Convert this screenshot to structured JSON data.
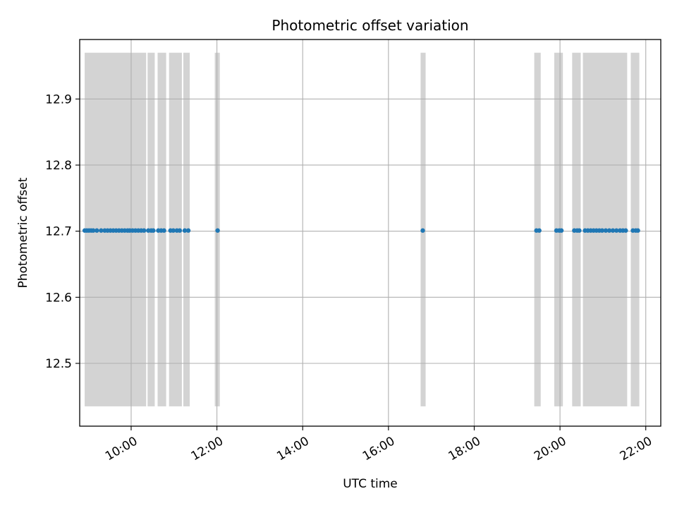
{
  "chart_data": {
    "type": "scatter",
    "title": "Photometric offset variation",
    "xlabel": "UTC time",
    "ylabel": "Photometric offset",
    "x_unit": "UTC time (HH:MM)",
    "xlim": [
      "08:48",
      "22:21"
    ],
    "ylim": [
      12.405,
      12.99
    ],
    "x_ticks": [
      "10:00",
      "12:00",
      "14:00",
      "16:00",
      "18:00",
      "20:00",
      "22:00"
    ],
    "y_ticks": [
      12.5,
      12.6,
      12.7,
      12.8,
      12.9
    ],
    "y_tick_labels": [
      "12.5",
      "12.6",
      "12.7",
      "12.8",
      "12.9"
    ],
    "grid": true,
    "legend": "none",
    "colors": {
      "points": "#1f77b4",
      "spans": "#d3d3d3",
      "grid": "#b0b0b0"
    },
    "span_range": [
      12.435,
      12.97
    ],
    "spans": [
      {
        "start": "08:55",
        "end": "10:21"
      },
      {
        "start": "10:23",
        "end": "10:33"
      },
      {
        "start": "10:37",
        "end": "10:49"
      },
      {
        "start": "10:53",
        "end": "11:11"
      },
      {
        "start": "11:13",
        "end": "11:22"
      },
      {
        "start": "11:57",
        "end": "12:04"
      },
      {
        "start": "16:45",
        "end": "16:52"
      },
      {
        "start": "19:24",
        "end": "19:33"
      },
      {
        "start": "19:52",
        "end": "20:04"
      },
      {
        "start": "20:17",
        "end": "20:29"
      },
      {
        "start": "20:32",
        "end": "21:34"
      },
      {
        "start": "21:39",
        "end": "21:51"
      }
    ],
    "series": [
      {
        "x": [
          "08:55",
          "08:58",
          "09:01",
          "09:04",
          "09:07",
          "09:12",
          "09:18",
          "09:23",
          "09:27",
          "09:31",
          "09:35",
          "09:39",
          "09:43",
          "09:47",
          "09:51",
          "09:55",
          "09:58",
          "10:02",
          "10:06",
          "10:10",
          "10:14",
          "10:18",
          "10:24",
          "10:28",
          "10:31",
          "10:38",
          "10:42",
          "10:46",
          "10:55",
          "10:59",
          "11:04",
          "11:08",
          "11:15",
          "11:20",
          "12:01",
          "16:48",
          "19:27",
          "19:31",
          "19:55",
          "19:59",
          "20:02",
          "20:20",
          "20:24",
          "20:27",
          "20:35",
          "20:39",
          "20:43",
          "20:47",
          "20:51",
          "20:55",
          "20:59",
          "21:04",
          "21:09",
          "21:14",
          "21:19",
          "21:24",
          "21:28",
          "21:32",
          "21:42",
          "21:46",
          "21:49"
        ],
        "y": [
          12.701,
          12.701,
          12.701,
          12.701,
          12.701,
          12.701,
          12.701,
          12.701,
          12.701,
          12.701,
          12.701,
          12.701,
          12.701,
          12.701,
          12.701,
          12.701,
          12.701,
          12.701,
          12.701,
          12.701,
          12.701,
          12.701,
          12.701,
          12.701,
          12.701,
          12.701,
          12.701,
          12.701,
          12.701,
          12.701,
          12.701,
          12.701,
          12.701,
          12.701,
          12.701,
          12.701,
          12.701,
          12.701,
          12.701,
          12.701,
          12.701,
          12.701,
          12.701,
          12.701,
          12.701,
          12.701,
          12.701,
          12.701,
          12.701,
          12.701,
          12.701,
          12.701,
          12.701,
          12.701,
          12.701,
          12.701,
          12.701,
          12.701,
          12.701,
          12.701,
          12.701
        ]
      }
    ]
  }
}
